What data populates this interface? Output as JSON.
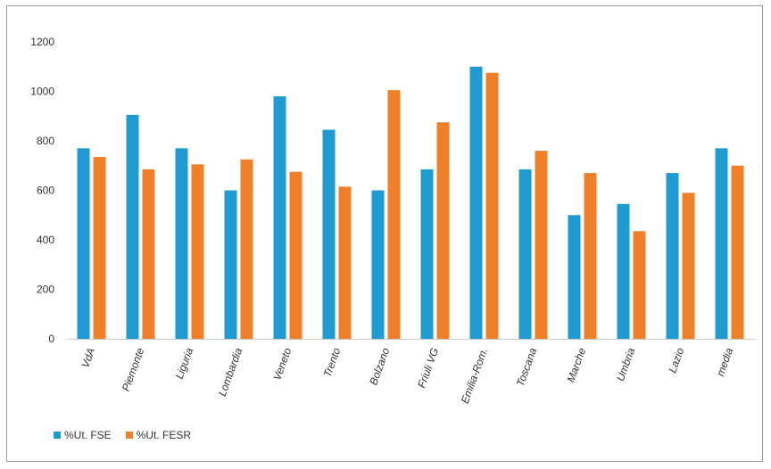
{
  "chart_data": {
    "type": "bar",
    "title": "",
    "xlabel": "",
    "ylabel": "",
    "ylim": [
      0,
      1200
    ],
    "yticks": [
      0,
      200,
      400,
      600,
      800,
      1000,
      1200
    ],
    "grid": false,
    "legend_position": "bottom-left",
    "categories": [
      "VdA",
      "Piemonte",
      "Liguria",
      "Lombardia",
      "Veneto",
      "Trento",
      "Bolzano",
      "Friuli VG",
      "Emilia-Rom.",
      "Toscana",
      "Marche",
      "Umbria",
      "Lazio",
      "media"
    ],
    "series": [
      {
        "name": "%Ut. FSE",
        "color": "#1f9bd1",
        "values": [
          770,
          905,
          770,
          600,
          980,
          845,
          600,
          685,
          1100,
          685,
          500,
          545,
          670,
          770
        ]
      },
      {
        "name": "%Ut. FESR",
        "color": "#f07f2a",
        "values": [
          735,
          685,
          705,
          725,
          675,
          615,
          1005,
          875,
          1075,
          760,
          670,
          435,
          590,
          700
        ]
      }
    ]
  }
}
